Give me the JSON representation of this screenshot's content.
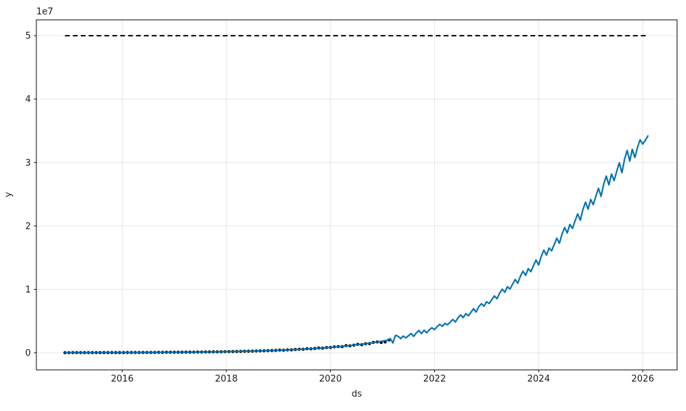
{
  "chart_data": {
    "type": "line",
    "title": "",
    "xlabel": "ds",
    "ylabel": "y",
    "y_offset_label": "1e7",
    "y_unit_note": "y values stored in millions (1e6); axis displays units of 1e7",
    "x_ticks": [
      2016,
      2018,
      2020,
      2022,
      2024,
      2026
    ],
    "y_ticks_1e7": [
      0,
      1,
      2,
      3,
      4,
      5
    ],
    "xlim": [
      2014.35,
      2026.66
    ],
    "ylim_millions": [
      -2.7,
      52.5
    ],
    "grid": true,
    "legend_position": "none",
    "colors": {
      "forecast_line": "#0072B2",
      "observations": "#000000",
      "cap_line": "#000000",
      "grid": "#e6e6e6",
      "spine": "#000000",
      "text": "#1a1a1a"
    },
    "series": [
      {
        "name": "cap",
        "style": "dashed",
        "y_millions_const": 50,
        "t_start": 2014.9,
        "t_end": 2026.08
      },
      {
        "name": "observations",
        "style": "scatter",
        "t_start": 2014.9,
        "t_step": 0.075,
        "y_millions": [
          0.016,
          0.016,
          0.017,
          0.018,
          0.02,
          0.021,
          0.022,
          0.023,
          0.025,
          0.026,
          0.028,
          0.03,
          0.032,
          0.033,
          0.035,
          0.038,
          0.04,
          0.042,
          0.045,
          0.048,
          0.051,
          0.054,
          0.057,
          0.06,
          0.064,
          0.068,
          0.072,
          0.076,
          0.081,
          0.086,
          0.091,
          0.097,
          0.103,
          0.109,
          0.116,
          0.123,
          0.13,
          0.138,
          0.147,
          0.156,
          0.165,
          0.175,
          0.186,
          0.197,
          0.209,
          0.222,
          0.236,
          0.25,
          0.265,
          0.281,
          0.298,
          0.317,
          0.336,
          0.356,
          0.378,
          0.417,
          0.404,
          0.456,
          0.465,
          0.523,
          0.55,
          0.549,
          0.637,
          0.631,
          0.683,
          0.754,
          0.731,
          0.824,
          0.828,
          0.93,
          0.974,
          0.97,
          1.121,
          1.107,
          1.195,
          1.315,
          1.27,
          1.428,
          1.451,
          1.629,
          1.706,
          1.62,
          1.71,
          2.02
        ]
      },
      {
        "name": "yhat_fitted",
        "style": "line",
        "t_start": 2014.9,
        "t_step": 0.1,
        "y_millions": [
          0.015,
          0.017,
          0.018,
          0.02,
          0.021,
          0.023,
          0.025,
          0.027,
          0.029,
          0.032,
          0.034,
          0.037,
          0.04,
          0.043,
          0.047,
          0.051,
          0.055,
          0.059,
          0.064,
          0.07,
          0.075,
          0.081,
          0.088,
          0.095,
          0.103,
          0.111,
          0.12,
          0.13,
          0.141,
          0.152,
          0.165,
          0.178,
          0.193,
          0.209,
          0.226,
          0.244,
          0.264,
          0.286,
          0.309,
          0.335,
          0.362,
          0.391,
          0.423,
          0.458,
          0.495,
          0.535,
          0.578,
          0.625,
          0.676,
          0.73,
          0.789,
          0.854,
          0.921,
          0.994,
          1.073,
          1.157,
          1.256,
          1.352,
          1.458,
          1.572,
          1.694,
          1.843,
          1.989
        ]
      },
      {
        "name": "yhat_forecast",
        "style": "line",
        "t_start": 2021.1,
        "t_step": 0.05,
        "y_millions": [
          1.99,
          2.24,
          1.55,
          2.75,
          2.6,
          2.24,
          2.64,
          2.35,
          2.69,
          3.04,
          2.58,
          3.14,
          3.51,
          3.01,
          3.56,
          3.15,
          3.62,
          3.94,
          3.65,
          4.14,
          4.48,
          4.17,
          4.64,
          4.41,
          4.83,
          5.25,
          4.86,
          5.51,
          5.96,
          5.54,
          6.17,
          5.84,
          6.39,
          6.95,
          6.42,
          7.27,
          7.73,
          7.36,
          8.04,
          7.77,
          8.37,
          8.97,
          8.52,
          9.41,
          10.04,
          9.55,
          10.41,
          10.05,
          10.81,
          11.56,
          10.96,
          12.07,
          12.87,
          12.21,
          13.28,
          12.78,
          13.72,
          14.64,
          13.84,
          15.21,
          16.18,
          15.39,
          16.53,
          16.07,
          17.08,
          18.07,
          17.27,
          18.73,
          19.75,
          18.89,
          20.24,
          19.61,
          20.79,
          21.92,
          20.89,
          22.58,
          23.75,
          22.64,
          24.18,
          23.36,
          24.7,
          25.95,
          24.66,
          26.57,
          27.87,
          26.48,
          28.2,
          27.15,
          28.62,
          29.97,
          28.39,
          30.5,
          31.9,
          30.22,
          32.08,
          30.79,
          32.37,
          33.6,
          32.9,
          33.5,
          34.2
        ]
      }
    ]
  }
}
